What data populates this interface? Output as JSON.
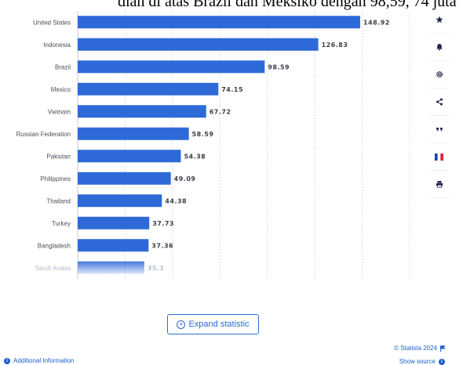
{
  "header": {
    "headline": "dian di atas Brazil dan Meksiko dengan 98,59, 74 juta"
  },
  "chart_data": {
    "type": "bar",
    "orientation": "horizontal",
    "categories": [
      "United States",
      "Indonesia",
      "Brazil",
      "Mexico",
      "Vietnam",
      "Russian Federation",
      "Pakistan",
      "Philippines",
      "Thailand",
      "Turkey",
      "Bangladesh",
      "Saudi Arabia"
    ],
    "values": [
      148.92,
      126.83,
      98.59,
      74.15,
      67.72,
      58.59,
      54.38,
      49.09,
      44.38,
      37.73,
      37.36,
      35.1
    ],
    "value_labels": [
      "148.92",
      "126.83",
      "98.59",
      "74.15",
      "67.72",
      "58.59",
      "54.38",
      "49.09",
      "44.38",
      "37.73",
      "37.36",
      "35.1"
    ],
    "xlim": [
      0,
      175
    ],
    "grid": true,
    "bar_color": "#2d6ad8",
    "faded_last": true
  },
  "side_panel": {
    "icons": [
      "star-icon",
      "bell-icon",
      "gear-icon",
      "share-icon",
      "quote-icon",
      "french-flag-icon",
      "print-icon"
    ]
  },
  "expand": {
    "label": "Expand statistic"
  },
  "footer": {
    "additional_info": "Additional Information",
    "copyright": "© Statista 2024",
    "show_source": "Show source"
  },
  "colors": {
    "accent": "#2d6ad8",
    "link": "#1b5fd0",
    "grid": "#d9dde3"
  }
}
